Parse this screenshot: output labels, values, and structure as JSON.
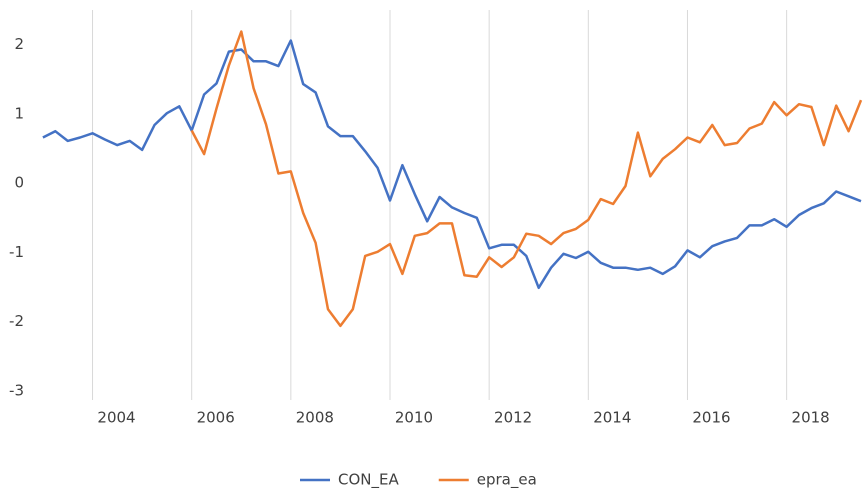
{
  "chart_data": {
    "type": "line",
    "x": [
      2003,
      2003.25,
      2003.5,
      2003.75,
      2004,
      2004.25,
      2004.5,
      2004.75,
      2005,
      2005.25,
      2005.5,
      2005.75,
      2006,
      2006.25,
      2006.5,
      2006.75,
      2007,
      2007.25,
      2007.5,
      2007.75,
      2008,
      2008.25,
      2008.5,
      2008.75,
      2009,
      2009.25,
      2009.5,
      2009.75,
      2010,
      2010.25,
      2010.5,
      2010.75,
      2011,
      2011.25,
      2011.5,
      2011.75,
      2012,
      2012.25,
      2012.5,
      2012.75,
      2013,
      2013.25,
      2013.5,
      2013.75,
      2014,
      2014.25,
      2014.5,
      2014.75,
      2015,
      2015.25,
      2015.5,
      2015.75,
      2016,
      2016.25,
      2016.5,
      2016.75,
      2017,
      2017.25,
      2017.5,
      2017.75,
      2018,
      2018.25,
      2018.5,
      2018.75,
      2019,
      2019.25,
      2019.5
    ],
    "series": [
      {
        "name": "CON_EA",
        "color": "#4472c4",
        "values": [
          0.66,
          0.75,
          0.61,
          0.66,
          0.72,
          0.63,
          0.55,
          0.61,
          0.48,
          0.84,
          1.01,
          1.11,
          0.76,
          1.28,
          1.44,
          1.9,
          1.93,
          1.76,
          1.76,
          1.69,
          2.06,
          1.43,
          1.31,
          0.82,
          0.68,
          0.68,
          0.46,
          0.22,
          -0.25,
          0.26,
          -0.16,
          -0.55,
          -0.2,
          -0.35,
          -0.43,
          -0.5,
          -0.94,
          -0.89,
          -0.89,
          -1.05,
          -1.51,
          -1.22,
          -1.02,
          -1.08,
          -0.99,
          -1.15,
          -1.22,
          -1.22,
          -1.25,
          -1.22,
          -1.31,
          -1.2,
          -0.97,
          -1.07,
          -0.91,
          -0.84,
          -0.79,
          -0.61,
          -0.61,
          -0.52,
          -0.63,
          -0.46,
          -0.36,
          -0.29,
          -0.12,
          -0.19,
          -0.26
        ]
      },
      {
        "name": "epra_ea",
        "color": "#ed7d31",
        "values": [
          null,
          null,
          null,
          null,
          null,
          null,
          null,
          null,
          null,
          null,
          null,
          null,
          0.76,
          0.42,
          1.08,
          1.7,
          2.19,
          1.37,
          0.85,
          0.14,
          0.17,
          -0.43,
          -0.86,
          -1.82,
          -2.06,
          -1.82,
          -1.05,
          -0.99,
          -0.88,
          -1.31,
          -0.76,
          -0.72,
          -0.58,
          -0.58,
          -1.33,
          -1.35,
          -1.07,
          -1.21,
          -1.07,
          -0.73,
          -0.76,
          -0.88,
          -0.72,
          -0.66,
          -0.53,
          -0.23,
          -0.3,
          -0.04,
          0.73,
          0.1,
          0.35,
          0.49,
          0.66,
          0.59,
          0.84,
          0.55,
          0.58,
          0.79,
          0.86,
          1.17,
          0.98,
          1.14,
          1.1,
          0.55,
          1.12,
          0.75,
          1.2
        ]
      }
    ],
    "xlim": [
      2002.84,
      2019.52
    ],
    "xticks": [
      2004,
      2006,
      2008,
      2010,
      2012,
      2014,
      2016,
      2018
    ],
    "ylim": [
      -3.13,
      2.5
    ],
    "yticks": [
      -3,
      -2,
      -1,
      0,
      1,
      2
    ],
    "grid": "x",
    "legend": "bottom"
  }
}
